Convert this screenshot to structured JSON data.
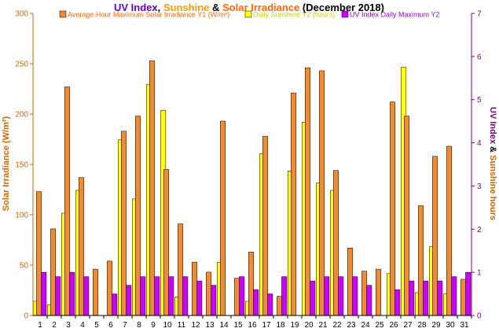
{
  "chart_data": {
    "type": "bar",
    "title": {
      "part1": "UV Index",
      "sep1": ", ",
      "part2": "Sunshine",
      "sep2": " & ",
      "part3": "Solar Irradiance",
      "part4": " (December 2018)"
    },
    "ylabel_left": "Solar Irradiance (W/m²)",
    "ylabel_right": {
      "part1": "UV Index",
      "sep": " & ",
      "part2": "Sunshine hours"
    },
    "ylim_left": [
      0,
      300
    ],
    "ylim_right": [
      0,
      7
    ],
    "left_ticks": [
      "0",
      "50",
      "100",
      "150",
      "200",
      "250",
      "300"
    ],
    "right_ticks": [
      "0",
      "1",
      "2",
      "3",
      "4",
      "5",
      "6",
      "7"
    ],
    "categories": [
      "1",
      "2",
      "3",
      "4",
      "5",
      "6",
      "7",
      "8",
      "9",
      "10",
      "11",
      "12",
      "13",
      "14",
      "15",
      "16",
      "17",
      "18",
      "19",
      "20",
      "21",
      "22",
      "23",
      "24",
      "25",
      "26",
      "27",
      "28",
      "29",
      "30",
      "31"
    ],
    "series": [
      {
        "name": "Average Hour Maximum Solar Irradiance Y1 (W/m²)",
        "axis": "left",
        "color": "#f28a30",
        "values": [
          123,
          86,
          227,
          137,
          46,
          54,
          183,
          198,
          253,
          145,
          91,
          53,
          43,
          193,
          37,
          63,
          178,
          19,
          221,
          246,
          243,
          144,
          67,
          44,
          46,
          212,
          198,
          109,
          158,
          168,
          36
        ]
      },
      {
        "name": "Daily Sunshine Y2 (hours)",
        "axis": "right",
        "color": "#ffff00",
        "values": [
          0.33,
          0.25,
          2.37,
          2.9,
          0,
          0,
          4.07,
          2.7,
          5.35,
          4.75,
          0.43,
          0,
          0,
          1.23,
          0,
          0.33,
          3.75,
          0,
          3.35,
          4.48,
          3.07,
          2.9,
          0,
          0,
          0,
          0.97,
          5.75,
          0.53,
          1.6,
          0.5,
          0
        ]
      },
      {
        "name": "UV Index Daily Maximum Y2",
        "axis": "right",
        "color": "#cc00ff",
        "values": [
          1.0,
          0.9,
          1.0,
          0.9,
          0,
          0.5,
          0.7,
          0.9,
          0.9,
          0.9,
          0.9,
          0.8,
          0.7,
          0,
          0.9,
          0.6,
          0.5,
          0.9,
          0,
          0.8,
          0.9,
          0.9,
          0.9,
          0.7,
          0,
          0.6,
          0.8,
          0.8,
          0.8,
          0.9,
          1.0
        ]
      }
    ],
    "colors": {
      "title_part1": "#6600cc",
      "title_part2": "#ff9900",
      "title_part3": "#ff6600",
      "title_part4": "#000000",
      "left_axis": "#cc6600",
      "right_axis": "#800080",
      "right_label_part1": "#800080",
      "right_label_sep": "#000000",
      "right_label_part2": "#cc6600"
    },
    "grid": false,
    "legend_position": "top"
  }
}
